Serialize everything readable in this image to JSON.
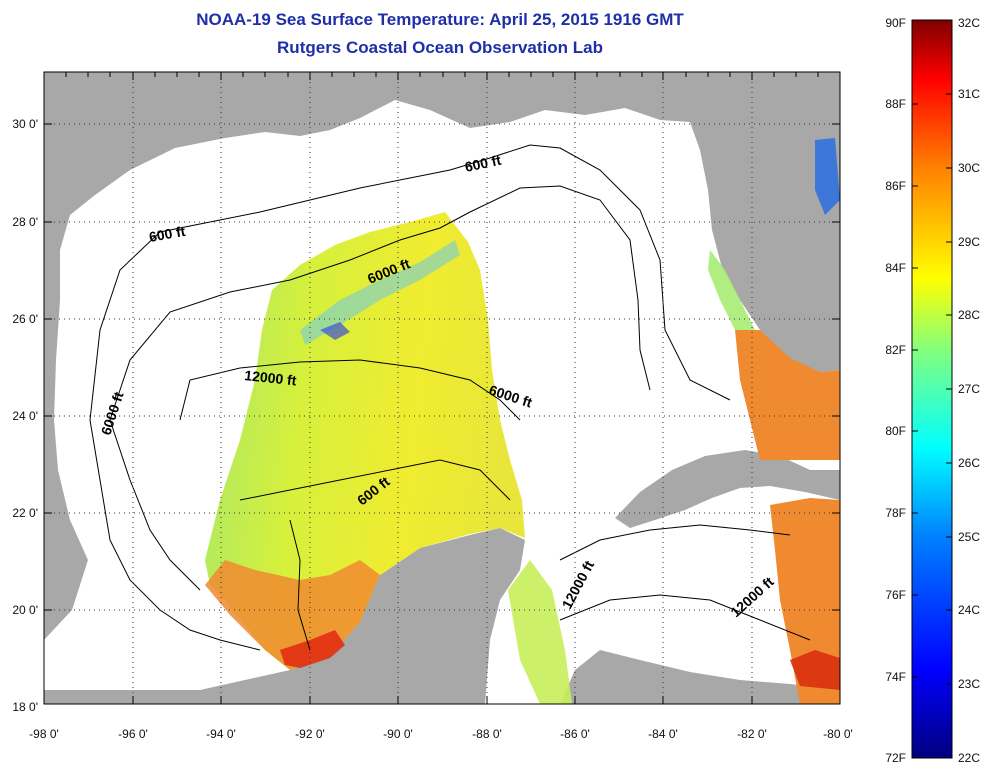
{
  "header": {
    "title": "NOAA-19 Sea Surface Temperature:  April 25, 2015 1916 GMT",
    "subtitle": "Rutgers Coastal Ocean Observation Lab"
  },
  "map": {
    "longitude_ticks": [
      "-98 0'",
      "-96 0'",
      "-94 0'",
      "-92 0'",
      "-90 0'",
      "-88 0'",
      "-86 0'",
      "-84 0'",
      "-82 0'",
      "-80 0'"
    ],
    "latitude_ticks": [
      "30 0'",
      "28 0'",
      "26 0'",
      "24 0'",
      "22 0'",
      "20 0'",
      "18 0'"
    ],
    "lon_range": [
      -98,
      -80
    ],
    "lat_range": [
      18,
      31
    ],
    "grid": "dotted",
    "land_color": "#a8a8a8",
    "ocean_color": "#ffffff",
    "contour_labels": {
      "a": "600 ft",
      "b": "600 ft",
      "c": "6000 ft",
      "d": "6000 ft",
      "e": "12000 ft",
      "f": "6000 ft",
      "g": "600 ft",
      "h": "12000 ft",
      "i": "12000 ft"
    }
  },
  "colorbar": {
    "fahrenheit_labels": [
      "90F",
      "88F",
      "86F",
      "84F",
      "82F",
      "80F",
      "78F",
      "76F",
      "74F",
      "72F"
    ],
    "celsius_labels": [
      "32C",
      "31C",
      "30C",
      "29C",
      "28C",
      "27C",
      "26C",
      "25C",
      "24C",
      "23C",
      "22C"
    ],
    "range_celsius": [
      22,
      32
    ],
    "colors": [
      "#00007f",
      "#0000ff",
      "#0080ff",
      "#00ffff",
      "#80ff80",
      "#ffff00",
      "#ff8000",
      "#ff0000",
      "#7f0000"
    ]
  }
}
